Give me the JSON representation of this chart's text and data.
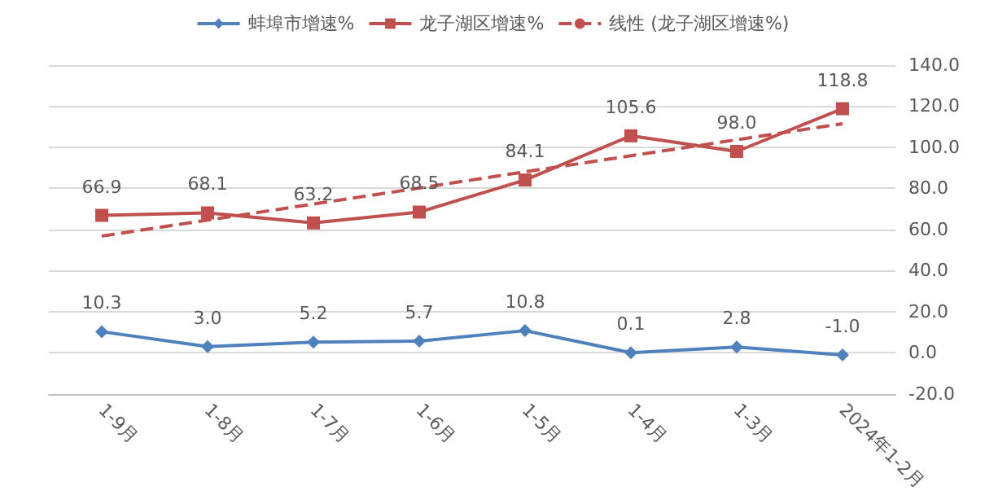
{
  "chart_data": {
    "type": "line",
    "categories": [
      "1-9月",
      "1-8月",
      "1-7月",
      "1-6月",
      "1-5月",
      "1-4月",
      "1-3月",
      "2024年1-2月"
    ],
    "series": [
      {
        "name": "蚌埠市增速%",
        "color": "#4f81bd",
        "marker": "diamond",
        "values": [
          10.3,
          3.0,
          5.2,
          5.7,
          10.8,
          0.1,
          2.8,
          -1.0
        ],
        "value_labels": [
          "10.3",
          "3.0",
          "5.2",
          "5.7",
          "10.8",
          "0.1",
          "2.8",
          "-1.0"
        ]
      },
      {
        "name": "龙子湖区增速%",
        "color": "#c0504d",
        "marker": "square",
        "values": [
          66.9,
          68.1,
          63.2,
          68.5,
          84.1,
          105.6,
          98.0,
          118.8
        ],
        "value_labels": [
          "66.9",
          "68.1",
          "63.2",
          "68.5",
          "84.1",
          "105.6",
          "98.0",
          "118.8"
        ]
      },
      {
        "name": "线性 (龙子湖区增速%)",
        "color": "#c0504d",
        "marker": "none",
        "line_style": "dashed",
        "values": [
          56.8,
          64.6,
          72.4,
          80.2,
          88.1,
          95.9,
          103.7,
          111.5
        ]
      }
    ],
    "ylim": [
      -20,
      140
    ],
    "yticks": [
      {
        "value": -20,
        "label": "-20.0"
      },
      {
        "value": 0,
        "label": "0.0"
      },
      {
        "value": 20,
        "label": "20.0"
      },
      {
        "value": 40,
        "label": "40.0"
      },
      {
        "value": 60,
        "label": "60.0"
      },
      {
        "value": 80,
        "label": "80.0"
      },
      {
        "value": 100,
        "label": "100.0"
      },
      {
        "value": 120,
        "label": "120.0"
      },
      {
        "value": 140,
        "label": "140.0"
      }
    ],
    "grid": "y",
    "legend": "top"
  }
}
